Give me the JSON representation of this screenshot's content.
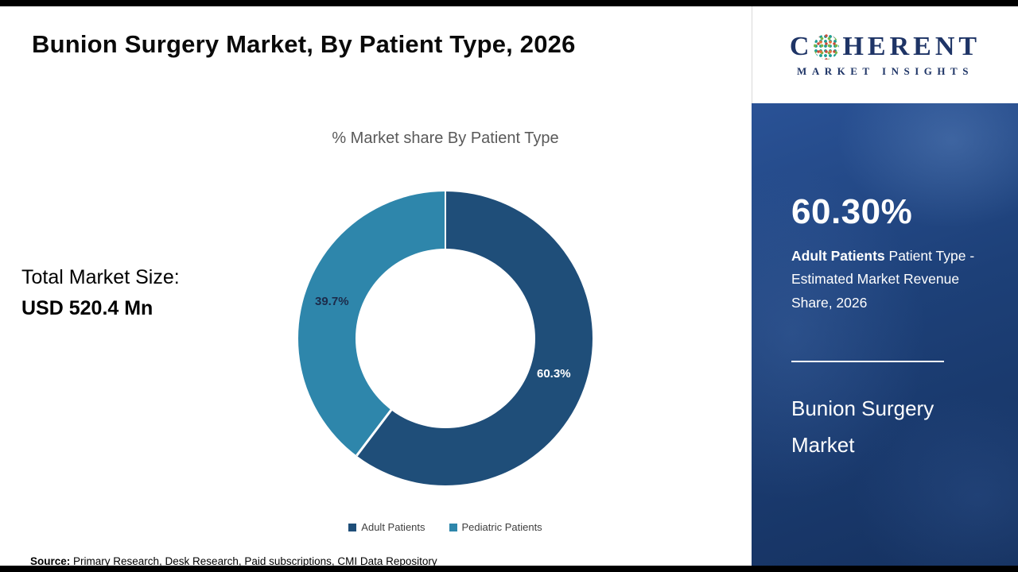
{
  "page": {
    "title": "Bunion Surgery Market, By Patient Type, 2026",
    "total_market_label": "Total Market Size:",
    "total_market_value": "USD 520.4 Mn",
    "source_label": "Source:",
    "source_text": " Primary Research, Desk Research, Paid subscriptions, CMI Data Repository"
  },
  "chart_data": {
    "type": "pie",
    "subtype": "donut",
    "title": "% Market share By Patient Type",
    "categories": [
      "Adult Patients",
      "Pediatric Patients"
    ],
    "values": [
      60.3,
      39.7
    ],
    "labels": [
      "60.3%",
      "39.7%"
    ],
    "colors": [
      "#1f4e79",
      "#2e86ab"
    ],
    "legend_position": "bottom",
    "start_angle_deg": 0
  },
  "sidebar": {
    "logo": {
      "brand_part1": "C",
      "brand_part2": "HERENT",
      "brand_line2": "MARKET INSIGHTS"
    },
    "stat_value": "60.30%",
    "stat_desc_bold": "Adult Patients",
    "stat_desc_rest": " Patient Type - Estimated Market Revenue Share, 2026",
    "market_name": "Bunion Surgery Market"
  }
}
